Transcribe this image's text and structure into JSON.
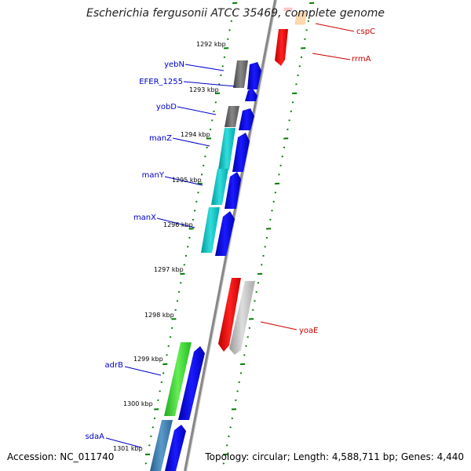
{
  "title": "Escherichia fergusonii ATCC 35469, complete genome",
  "footer": {
    "accession_label": "Accession:",
    "accession": "NC_011740",
    "topology_label": "Topology:",
    "topology": "circular",
    "length_label": "Length:",
    "length": "4,588,711 bp",
    "genes_label": "Genes:",
    "genes": "4,440"
  },
  "colors": {
    "backbone": "#888888",
    "tick": "#007a00",
    "forward_label": "#0000cc",
    "reverse_label": "#cc0000",
    "cds_forward": "#0000ee",
    "cds_reverse": "#ee0000"
  },
  "scale_labels": [
    {
      "text": "1292 kbp",
      "kbp": 1292
    },
    {
      "text": "1293 kbp",
      "kbp": 1293
    },
    {
      "text": "1294 kbp",
      "kbp": 1294
    },
    {
      "text": "1295 kbp",
      "kbp": 1295
    },
    {
      "text": "1296 kbp",
      "kbp": 1296
    },
    {
      "text": "1297 kbp",
      "kbp": 1297
    },
    {
      "text": "1298 kbp",
      "kbp": 1298
    },
    {
      "text": "1299 kbp",
      "kbp": 1299
    },
    {
      "text": "1300 kbp",
      "kbp": 1300
    },
    {
      "text": "1301 kbp",
      "kbp": 1301
    }
  ],
  "gene_labels": [
    {
      "text": "yebN",
      "strand": "forward"
    },
    {
      "text": "EFER_1255",
      "strand": "forward"
    },
    {
      "text": "yobD",
      "strand": "forward"
    },
    {
      "text": "manZ",
      "strand": "forward"
    },
    {
      "text": "manY",
      "strand": "forward"
    },
    {
      "text": "manX",
      "strand": "forward"
    },
    {
      "text": "adrB",
      "strand": "forward"
    },
    {
      "text": "sdaA",
      "strand": "forward"
    },
    {
      "text": "cspC",
      "strand": "reverse"
    },
    {
      "text": "rrmA",
      "strand": "reverse"
    },
    {
      "text": "yoaE",
      "strand": "reverse"
    }
  ]
}
